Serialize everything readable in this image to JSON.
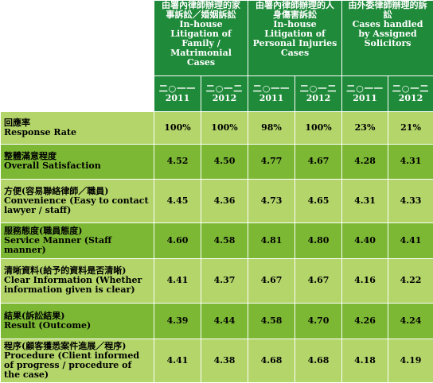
{
  "groups": [
    {
      "zh": "由署內律師辦理的家事訴訟／婚姻訴訟",
      "en": "In-house Litigation of Family / Matrimonial Cases"
    },
    {
      "zh": "由署內律師辦理的人身傷害訴訟",
      "en": "In-house Litigation of Personal Injuries Cases"
    },
    {
      "zh": "由外委律師辦理的訴訟",
      "en": "Cases handled by Assigned Solicitors"
    }
  ],
  "years": [
    {
      "zh": "二○一一",
      "en": "2011"
    },
    {
      "zh": "二○一二",
      "en": "2012"
    },
    {
      "zh": "二○一一",
      "en": "2011"
    },
    {
      "zh": "二○一二",
      "en": "2012"
    },
    {
      "zh": "二○一一",
      "en": "2011"
    },
    {
      "zh": "二○一二",
      "en": "2012"
    }
  ],
  "rows": [
    {
      "zh": "回應率",
      "en": "Response Rate",
      "values": [
        "100%",
        "100%",
        "98%",
        "100%",
        "23%",
        "21%"
      ]
    },
    {
      "zh": "整體滿意程度",
      "en": "Overall Satisfaction",
      "values": [
        "4.52",
        "4.50",
        "4.77",
        "4.67",
        "4.28",
        "4.31"
      ]
    },
    {
      "zh": "方便(容易聯絡律師／職員)",
      "en": "Convenience (Easy to contact lawyer / staff)",
      "values": [
        "4.45",
        "4.36",
        "4.73",
        "4.65",
        "4.31",
        "4.33"
      ]
    },
    {
      "zh": "服務態度(職員態度)",
      "en": "Service Manner (Staff manner)",
      "values": [
        "4.60",
        "4.58",
        "4.81",
        "4.80",
        "4.40",
        "4.41"
      ]
    },
    {
      "zh": "清晰資料(給予的資料是否清晰)",
      "en": "Clear Information (Whether information given is clear)",
      "values": [
        "4.41",
        "4.37",
        "4.67",
        "4.67",
        "4.16",
        "4.22"
      ]
    },
    {
      "zh": "結果(訴訟結果)",
      "en": "Result (Outcome)",
      "values": [
        "4.39",
        "4.44",
        "4.58",
        "4.70",
        "4.26",
        "4.24"
      ]
    },
    {
      "zh": "程序(顧客獲悉案件進展／程序)",
      "en": "Procedure (Client informed of progress / procedure of the case)",
      "values": [
        "4.41",
        "4.38",
        "4.68",
        "4.68",
        "4.18",
        "4.19"
      ]
    }
  ],
  "colors": {
    "header": "#1f8a3a",
    "row_light": "#b3d56a",
    "row_dark": "#7cb834",
    "text": "#000000",
    "header_text": "#ffffff"
  }
}
